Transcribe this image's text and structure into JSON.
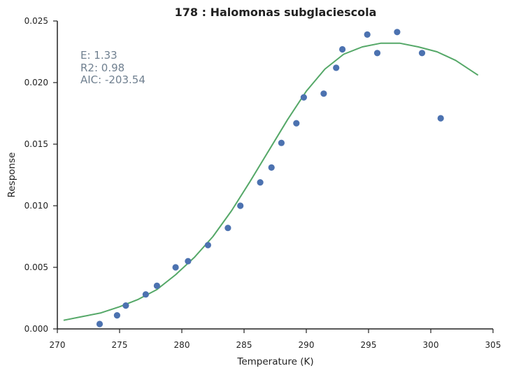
{
  "chart_data": {
    "type": "scatter",
    "title": "178 : Halomonas subglaciescola",
    "xlabel": "Temperature (K)",
    "ylabel": "Response",
    "xlim": [
      270,
      305
    ],
    "ylim": [
      0,
      0.025
    ],
    "x_ticks": [
      270,
      275,
      280,
      285,
      290,
      295,
      300,
      305
    ],
    "x_tick_labels": [
      "270",
      "275",
      "280",
      "285",
      "290",
      "295",
      "300",
      "305"
    ],
    "y_ticks": [
      0,
      0.005,
      0.01,
      0.015,
      0.02,
      0.025
    ],
    "y_tick_labels": [
      "0.000",
      "0.005",
      "0.010",
      "0.015",
      "0.020",
      "0.025"
    ],
    "grid": false,
    "annotations": [
      "E:  1.33",
      "R2:  0.98",
      "AIC: -203.54"
    ],
    "colors": {
      "points": "#4c72b0",
      "fit": "#55a868",
      "annotation": "#708090",
      "axis": "#222222"
    },
    "series": [
      {
        "type": "scatter",
        "x": [
          273.4,
          274.8,
          275.5,
          277.1,
          278.0,
          279.5,
          280.5,
          282.1,
          283.7,
          284.7,
          286.3,
          287.2,
          288.0,
          289.2,
          289.8,
          291.4,
          292.4,
          292.9,
          294.9,
          295.7,
          297.3,
          299.3,
          300.8
        ],
        "y": [
          0.0004,
          0.0011,
          0.0019,
          0.0028,
          0.0035,
          0.005,
          0.0055,
          0.0068,
          0.0082,
          0.01,
          0.0119,
          0.0131,
          0.0151,
          0.0167,
          0.0188,
          0.0191,
          0.0212,
          0.0227,
          0.0239,
          0.0224,
          0.0241,
          0.0224,
          0.0171
        ]
      },
      {
        "type": "line",
        "x": [
          270.5,
          272,
          273.5,
          275,
          276.5,
          278,
          279.5,
          281,
          282.5,
          284,
          285.5,
          287,
          288.5,
          290,
          291.5,
          293,
          294.5,
          296,
          297.5,
          299,
          300.5,
          302,
          303.8
        ],
        "y": [
          0.0007,
          0.001,
          0.0013,
          0.0018,
          0.0024,
          0.0032,
          0.0044,
          0.0058,
          0.0075,
          0.0096,
          0.012,
          0.0145,
          0.017,
          0.0193,
          0.0211,
          0.0223,
          0.0229,
          0.0232,
          0.0232,
          0.0229,
          0.0225,
          0.0218,
          0.0206
        ]
      }
    ]
  }
}
